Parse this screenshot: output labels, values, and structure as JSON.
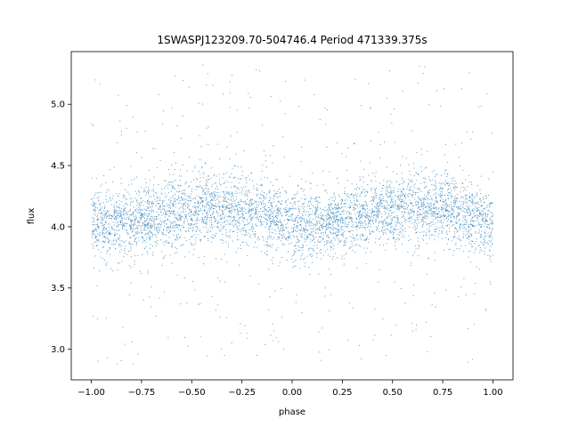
{
  "chart_data": {
    "type": "scatter",
    "title": "1SWASPJ123209.70-504746.4 Period 471339.375s",
    "xlabel": "phase",
    "ylabel": "flux",
    "xlim": [
      -1.1,
      1.1
    ],
    "ylim": [
      2.75,
      5.43
    ],
    "xticks": [
      -1.0,
      -0.75,
      -0.5,
      -0.25,
      0.0,
      0.25,
      0.5,
      0.75,
      1.0
    ],
    "xtick_labels": [
      "−1.00",
      "−0.75",
      "−0.50",
      "−0.25",
      "0.00",
      "0.25",
      "0.50",
      "0.75",
      "1.00"
    ],
    "yticks": [
      3.0,
      3.5,
      4.0,
      4.5,
      5.0
    ],
    "ytick_labels": [
      "3.0",
      "3.5",
      "4.0",
      "4.5",
      "5.0"
    ],
    "grid": false,
    "legend": "none",
    "series": [
      {
        "color": "#1f77b4",
        "marker": "point",
        "description_of_distribution": {
          "x_range": [
            -1.0,
            1.0
          ],
          "folded_twice": true,
          "median_profile": [
            {
              "x": -1.0,
              "y": 4.02
            },
            {
              "x": -0.75,
              "y": 4.05
            },
            {
              "x": -0.5,
              "y": 4.14
            },
            {
              "x": -0.25,
              "y": 4.15
            },
            {
              "x": 0.0,
              "y": 4.02
            },
            {
              "x": 0.25,
              "y": 4.05
            },
            {
              "x": 0.5,
              "y": 4.14
            },
            {
              "x": 0.75,
              "y": 4.15
            },
            {
              "x": 1.0,
              "y": 4.02
            }
          ],
          "core_spread": 0.14,
          "outlier_y_range": [
            2.88,
            5.32
          ]
        }
      }
    ]
  }
}
